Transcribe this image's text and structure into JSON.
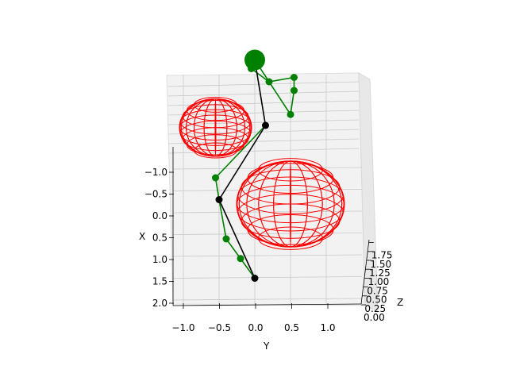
{
  "chart_data": {
    "type": "scatter",
    "projection": "3d",
    "title": "",
    "xlabel": "X",
    "ylabel": "Y",
    "zlabel": "Z",
    "xlim": [
      -1.2,
      2.0
    ],
    "ylim": [
      -1.2,
      1.3
    ],
    "zlim": [
      0.0,
      1.9
    ],
    "x_ticks": [
      "−1.0",
      "−0.5",
      "0.0",
      "0.5",
      "1.0",
      "1.5",
      "2.0"
    ],
    "y_ticks": [
      "−1.0",
      "−0.5",
      "0.0",
      "0.5",
      "1.0"
    ],
    "z_ticks": [
      "0.00",
      "0.25",
      "0.50",
      "0.75",
      "1.00",
      "1.25",
      "1.50",
      "1.75"
    ],
    "grid": true,
    "pane_color": "#f2f2f2",
    "grid_color": "#c8c8c8",
    "spheres": {
      "color": "#ff0000",
      "items": [
        {
          "center": [
            -0.95,
            -0.55,
            1.0
          ],
          "radius": 0.5
        },
        {
          "center": [
            0.55,
            0.5,
            0.75
          ],
          "radius": 0.75
        }
      ]
    },
    "skeleton": {
      "core_color": "#000000",
      "limb_color": "#008000",
      "core_joints": [
        {
          "name": "head",
          "pos": [
            -1.9,
            0.0,
            1.6
          ]
        },
        {
          "name": "chest",
          "pos": [
            -1.0,
            0.15,
            1.0
          ]
        },
        {
          "name": "pelvis",
          "pos": [
            0.2,
            -0.5,
            0.5
          ]
        },
        {
          "name": "knee",
          "pos": [
            1.8,
            0.0,
            0.3
          ]
        }
      ],
      "limb_joints": [
        [
          -1.7,
          -0.05,
          1.6
        ],
        [
          -1.55,
          0.2,
          1.45
        ],
        [
          -1.6,
          0.55,
          1.5
        ],
        [
          -1.5,
          0.55,
          1.3
        ],
        [
          -1.15,
          0.5,
          1.1
        ],
        [
          -0.2,
          -0.55,
          0.6
        ],
        [
          1.0,
          -0.4,
          0.4
        ],
        [
          1.4,
          -0.2,
          0.35
        ]
      ]
    }
  }
}
